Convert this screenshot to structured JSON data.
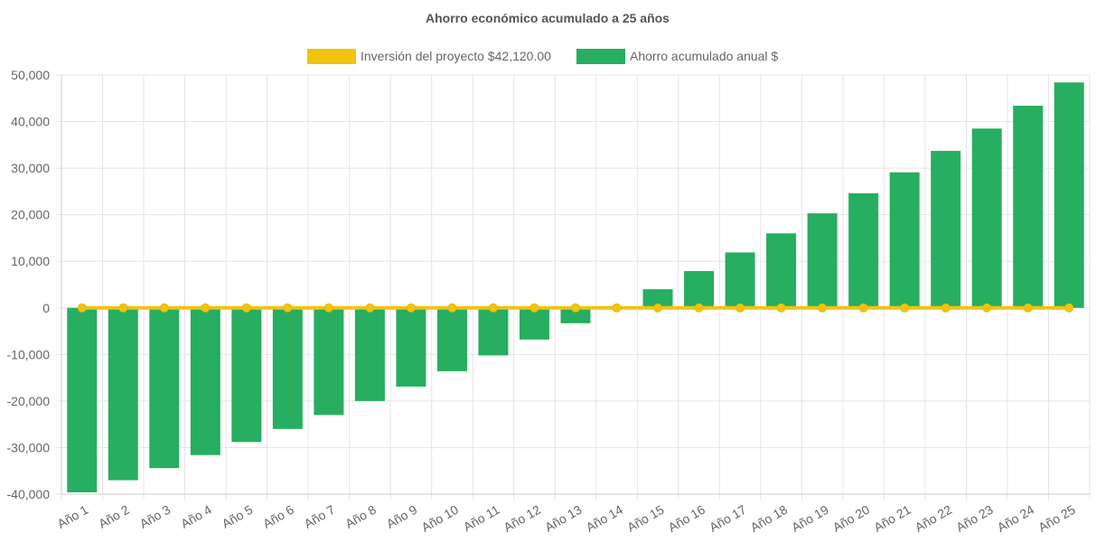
{
  "chart_data": {
    "type": "bar",
    "title": "Ahorro económico acumulado a 25 años",
    "categories": [
      "Año 1",
      "Año 2",
      "Año 3",
      "Año 4",
      "Año 5",
      "Año 6",
      "Año 7",
      "Año 8",
      "Año 9",
      "Año 10",
      "Año 11",
      "Año 12",
      "Año 13",
      "Año 14",
      "Año 15",
      "Año 16",
      "Año 17",
      "Año 18",
      "Año 19",
      "Año 20",
      "Año 21",
      "Año 22",
      "Año 23",
      "Año 24",
      "Año 25"
    ],
    "series": [
      {
        "name": "Inversión del proyecto $42,120.00",
        "kind": "line",
        "color": "#f1c40f",
        "values": [
          0,
          0,
          0,
          0,
          0,
          0,
          0,
          0,
          0,
          0,
          0,
          0,
          0,
          0,
          0,
          0,
          0,
          0,
          0,
          0,
          0,
          0,
          0,
          0,
          0
        ]
      },
      {
        "name": "Ahorro acumulado anual $",
        "kind": "bar",
        "color": "#27ae60",
        "values": [
          -39600,
          -37000,
          -34400,
          -31600,
          -28800,
          -26000,
          -23000,
          -20000,
          -16900,
          -13600,
          -10200,
          -6800,
          -3300,
          0,
          4000,
          7900,
          11900,
          16000,
          20300,
          24600,
          29100,
          33700,
          38500,
          43400,
          48400
        ]
      }
    ],
    "ylim": [
      -40000,
      50000
    ],
    "yticks": [
      "50,000",
      "40,000",
      "30,000",
      "20,000",
      "10,000",
      "0",
      "-10,000",
      "-20,000",
      "-30,000",
      "-40,000"
    ],
    "ytick_values": [
      50000,
      40000,
      30000,
      20000,
      10000,
      0,
      -10000,
      -20000,
      -30000,
      -40000
    ],
    "grid": true,
    "legend_position": "top"
  }
}
